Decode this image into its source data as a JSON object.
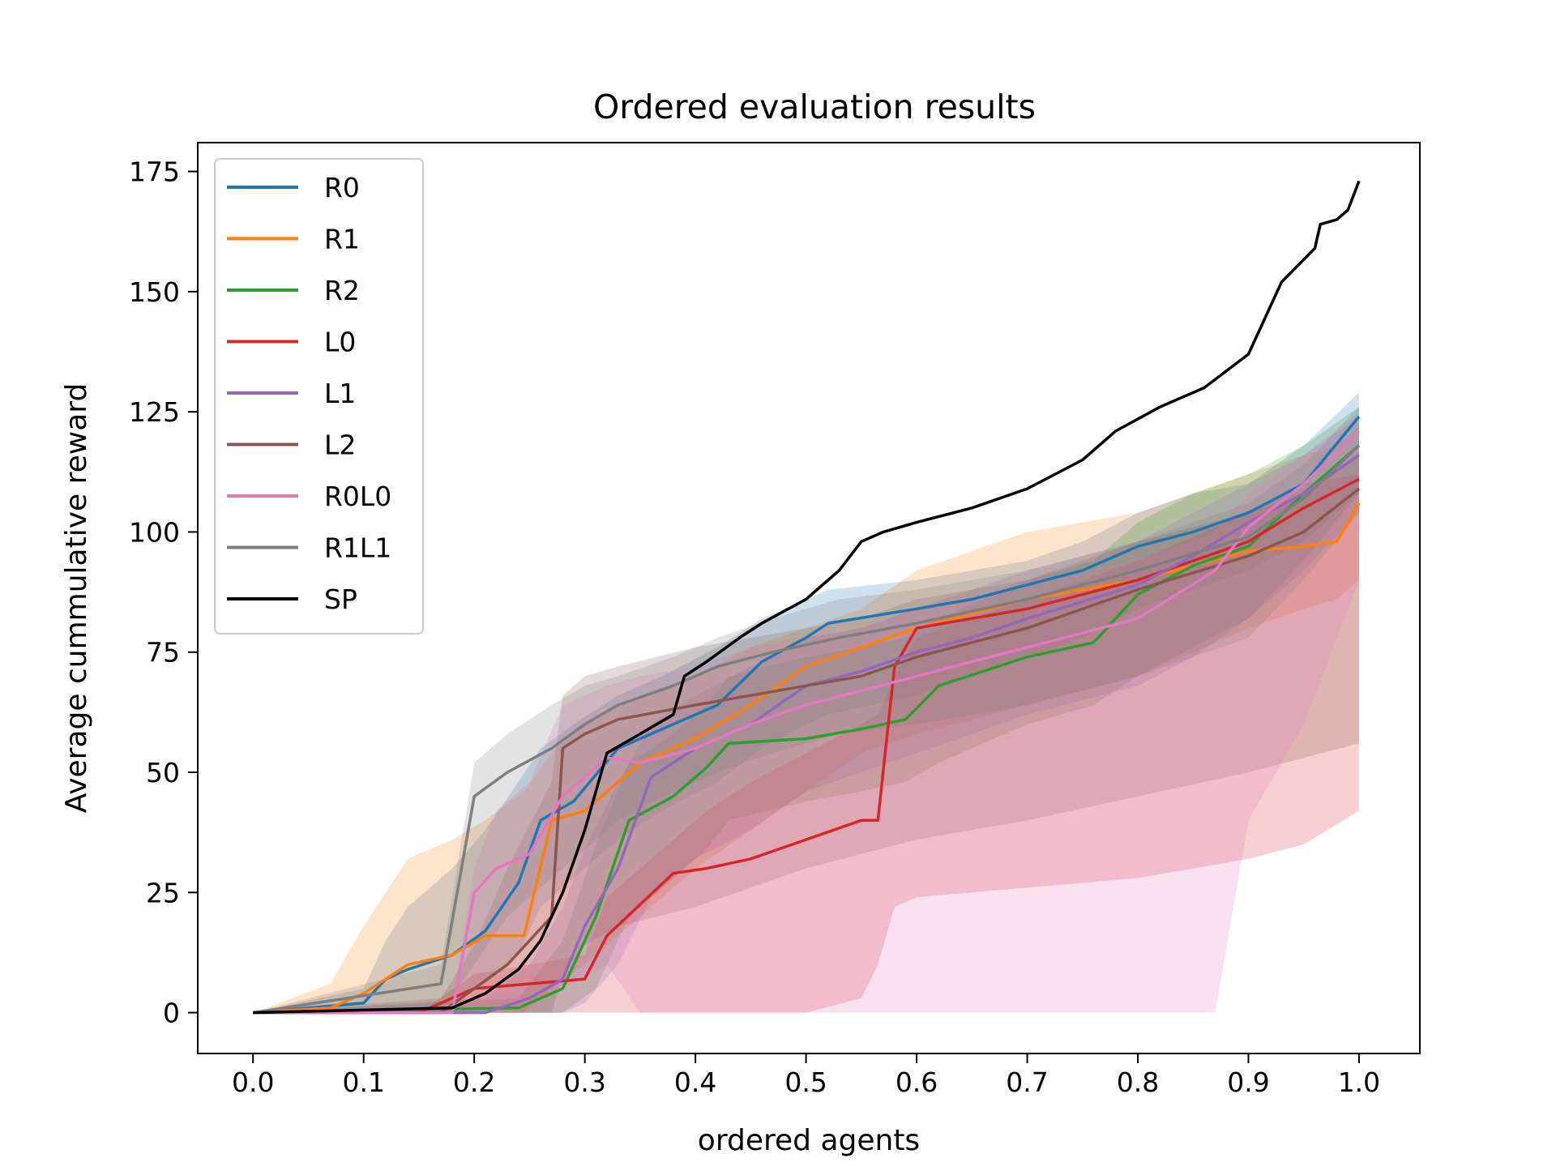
{
  "chart_data": {
    "type": "line",
    "title": "Ordered evaluation results",
    "xlabel": "ordered agents",
    "ylabel": "Average cummulative reward",
    "xlim": [
      -0.05,
      1.055
    ],
    "ylim": [
      -8.5,
      181
    ],
    "xticks": [
      "0.0",
      "0.1",
      "0.2",
      "0.3",
      "0.4",
      "0.5",
      "0.6",
      "0.7",
      "0.8",
      "0.9",
      "1.0"
    ],
    "yticks": [
      "0",
      "25",
      "50",
      "75",
      "100",
      "125",
      "150",
      "175"
    ],
    "grid": false,
    "legend_position": "upper-left",
    "series": [
      {
        "name": "R0",
        "color": "#1f77b4",
        "x": [
          0,
          0.1,
          0.12,
          0.14,
          0.18,
          0.21,
          0.24,
          0.26,
          0.29,
          0.33,
          0.37,
          0.42,
          0.46,
          0.5,
          0.52,
          0.6,
          0.65,
          0.7,
          0.75,
          0.8,
          0.85,
          0.9,
          0.95,
          1.0
        ],
        "y": [
          0,
          2,
          7,
          9,
          12,
          17,
          27,
          40,
          44,
          55,
          59,
          64,
          73,
          78,
          81,
          84,
          86,
          89,
          92,
          97,
          100,
          104,
          110,
          124
        ],
        "band_upper": [
          0,
          5,
          15,
          22,
          30,
          38,
          48,
          55,
          60,
          66,
          70,
          76,
          82,
          86,
          88,
          90,
          92,
          94,
          98,
          104,
          108,
          110,
          118,
          129
        ],
        "band_lower": [
          0,
          0,
          0,
          0,
          2,
          6,
          12,
          22,
          28,
          36,
          42,
          48,
          55,
          60,
          62,
          66,
          70,
          74,
          78,
          84,
          88,
          92,
          98,
          108
        ]
      },
      {
        "name": "R1",
        "color": "#ff7f0e",
        "x": [
          0,
          0.07,
          0.1,
          0.14,
          0.18,
          0.21,
          0.245,
          0.27,
          0.3,
          0.35,
          0.4,
          0.45,
          0.5,
          0.55,
          0.6,
          0.7,
          0.8,
          0.9,
          0.95,
          0.98,
          1.0
        ],
        "y": [
          0,
          1,
          4,
          10,
          12,
          16,
          16,
          40,
          42,
          52,
          57,
          64,
          72,
          76,
          80,
          86,
          90,
          96,
          97,
          98,
          106
        ],
        "band_upper": [
          0,
          6,
          18,
          32,
          36,
          40,
          46,
          54,
          60,
          66,
          70,
          76,
          80,
          84,
          92,
          100,
          104,
          112,
          116,
          118,
          122
        ],
        "band_lower": [
          0,
          0,
          0,
          0,
          0,
          0,
          0,
          5,
          10,
          20,
          30,
          38,
          46,
          54,
          58,
          64,
          70,
          80,
          84,
          86,
          90
        ]
      },
      {
        "name": "R2",
        "color": "#2ca02c",
        "x": [
          0,
          0.24,
          0.28,
          0.31,
          0.34,
          0.38,
          0.41,
          0.43,
          0.5,
          0.55,
          0.59,
          0.62,
          0.66,
          0.7,
          0.76,
          0.8,
          0.85,
          0.9,
          0.95,
          1.0
        ],
        "y": [
          0,
          1,
          5,
          20,
          40,
          45,
          51,
          56,
          57,
          59,
          61,
          68,
          71,
          74,
          77,
          87,
          93,
          97,
          108,
          118
        ],
        "band_upper": [
          0,
          3,
          15,
          35,
          52,
          58,
          64,
          70,
          74,
          76,
          78,
          82,
          86,
          90,
          94,
          102,
          108,
          112,
          118,
          126
        ],
        "band_lower": [
          0,
          0,
          0,
          5,
          20,
          28,
          34,
          40,
          44,
          46,
          48,
          52,
          56,
          60,
          64,
          70,
          76,
          82,
          94,
          108
        ]
      },
      {
        "name": "L0",
        "color": "#d62728",
        "x": [
          0,
          0.15,
          0.2,
          0.3,
          0.32,
          0.38,
          0.41,
          0.45,
          0.5,
          0.55,
          0.565,
          0.58,
          0.6,
          0.7,
          0.8,
          0.9,
          0.95,
          1.0
        ],
        "y": [
          0,
          0,
          5,
          7,
          16,
          29,
          30,
          32,
          36,
          40,
          40,
          72,
          80,
          84,
          90,
          98,
          105,
          111
        ],
        "band_upper": [
          0,
          0,
          8,
          12,
          24,
          36,
          42,
          48,
          54,
          60,
          62,
          70,
          78,
          86,
          94,
          104,
          110,
          112
        ],
        "band_lower": [
          0,
          0,
          0,
          0,
          0,
          0,
          0,
          0,
          0,
          3,
          10,
          22,
          24,
          26,
          28,
          32,
          35,
          42
        ]
      },
      {
        "name": "L1",
        "color": "#9467bd",
        "x": [
          0,
          0.21,
          0.25,
          0.28,
          0.3,
          0.33,
          0.36,
          0.4,
          0.45,
          0.5,
          0.55,
          0.6,
          0.65,
          0.7,
          0.8,
          0.85,
          0.9,
          0.95,
          1.0
        ],
        "y": [
          0,
          0,
          3,
          7,
          18,
          30,
          49,
          55,
          60,
          68,
          71,
          75,
          78,
          82,
          89,
          95,
          102,
          108,
          116
        ],
        "band_upper": [
          0,
          3,
          10,
          22,
          34,
          48,
          60,
          66,
          72,
          78,
          80,
          84,
          88,
          92,
          98,
          104,
          110,
          116,
          124
        ],
        "band_lower": [
          0,
          0,
          0,
          0,
          2,
          10,
          24,
          32,
          38,
          46,
          50,
          54,
          58,
          62,
          68,
          74,
          82,
          92,
          104
        ]
      },
      {
        "name": "L2",
        "color": "#8c564b",
        "x": [
          0,
          0.17,
          0.2,
          0.23,
          0.27,
          0.28,
          0.3,
          0.33,
          0.4,
          0.45,
          0.5,
          0.55,
          0.6,
          0.7,
          0.8,
          0.9,
          0.95,
          1.0
        ],
        "y": [
          0,
          0,
          5,
          10,
          20,
          55,
          58,
          61,
          64,
          66,
          68,
          70,
          74,
          80,
          88,
          95,
          100,
          109
        ],
        "band_upper": [
          0,
          3,
          14,
          30,
          48,
          66,
          70,
          72,
          76,
          78,
          80,
          82,
          86,
          90,
          98,
          104,
          108,
          116
        ],
        "band_lower": [
          0,
          0,
          0,
          0,
          0,
          8,
          14,
          18,
          22,
          26,
          30,
          33,
          36,
          40,
          45,
          50,
          53,
          56
        ]
      },
      {
        "name": "R0L0",
        "color": "#e377c2",
        "x": [
          0,
          0.18,
          0.2,
          0.22,
          0.25,
          0.28,
          0.32,
          0.35,
          0.4,
          0.45,
          0.5,
          0.55,
          0.6,
          0.65,
          0.7,
          0.8,
          0.87,
          0.9,
          0.95,
          1.0
        ],
        "y": [
          0,
          0,
          25,
          30,
          33,
          45,
          53,
          52,
          55,
          60,
          64,
          67,
          70,
          73,
          76,
          82,
          92,
          101,
          110,
          121
        ],
        "band_upper": [
          0,
          2,
          30,
          42,
          48,
          64,
          68,
          70,
          72,
          76,
          78,
          80,
          84,
          86,
          90,
          94,
          100,
          108,
          116,
          125
        ],
        "band_lower": [
          0,
          0,
          0,
          0,
          2,
          5,
          10,
          0,
          0,
          0,
          0,
          0,
          0,
          0,
          0,
          0,
          0,
          40,
          60,
          90
        ]
      },
      {
        "name": "R1L1",
        "color": "#7f7f7f",
        "x": [
          0,
          0.17,
          0.2,
          0.23,
          0.27,
          0.3,
          0.33,
          0.38,
          0.42,
          0.47,
          0.53,
          0.6,
          0.7,
          0.8,
          0.9,
          0.95,
          1.0
        ],
        "y": [
          0,
          6,
          45,
          50,
          55,
          60,
          64,
          68,
          72,
          75,
          78,
          81,
          86,
          92,
          99,
          107,
          118
        ],
        "band_upper": [
          0,
          10,
          52,
          58,
          64,
          68,
          70,
          74,
          78,
          82,
          86,
          88,
          92,
          98,
          106,
          114,
          126
        ],
        "band_lower": [
          0,
          0,
          10,
          20,
          28,
          34,
          40,
          46,
          50,
          54,
          58,
          60,
          64,
          70,
          78,
          90,
          104
        ]
      },
      {
        "name": "SP",
        "color": "#000000",
        "x": [
          0,
          0.18,
          0.21,
          0.24,
          0.26,
          0.28,
          0.3,
          0.32,
          0.35,
          0.38,
          0.39,
          0.41,
          0.44,
          0.46,
          0.5,
          0.53,
          0.55,
          0.57,
          0.6,
          0.65,
          0.7,
          0.75,
          0.78,
          0.82,
          0.86,
          0.9,
          0.93,
          0.96,
          0.965,
          0.98,
          0.99,
          1.0
        ],
        "y": [
          0,
          1,
          4,
          9,
          15,
          25,
          38,
          54,
          58,
          62,
          70,
          73,
          78,
          81,
          86,
          92,
          98,
          100,
          102,
          105,
          109,
          115,
          121,
          126,
          130,
          137,
          152,
          159,
          164,
          165,
          167,
          173
        ]
      }
    ]
  }
}
